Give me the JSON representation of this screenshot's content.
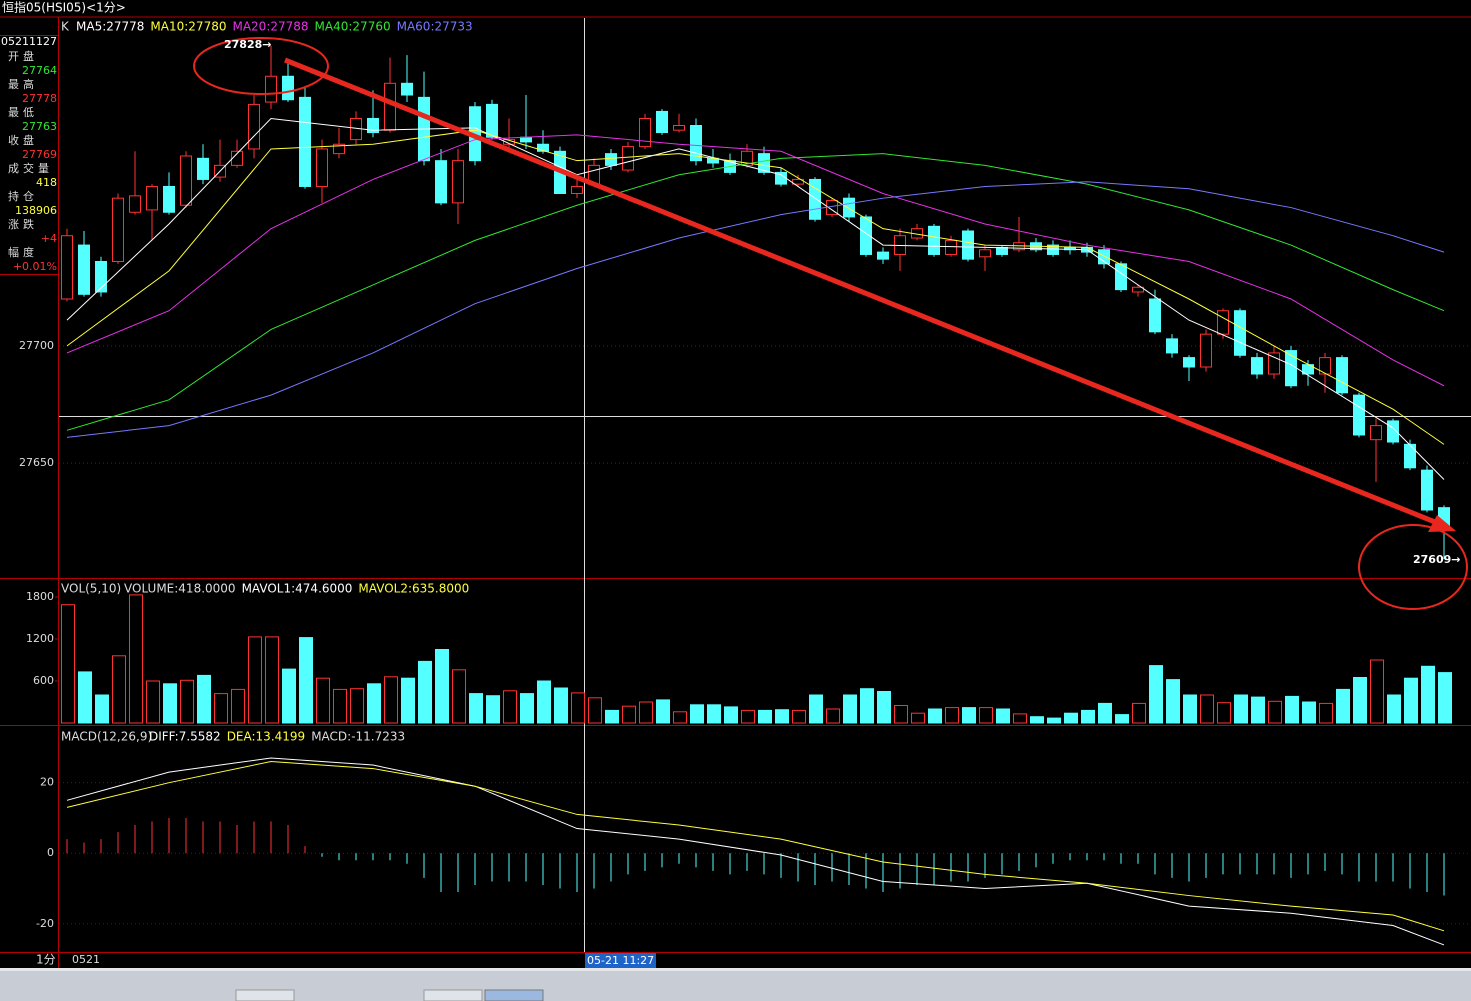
{
  "window_title": "恒指05(HSI05)<1分>",
  "info_panel": {
    "time": "05211127",
    "fields": [
      {
        "label": "开盘",
        "value": 27764,
        "color": "#32e632"
      },
      {
        "label": "最高",
        "value": 27778,
        "color": "#ff3232"
      },
      {
        "label": "最低",
        "value": 27763,
        "color": "#32e632"
      },
      {
        "label": "收盘",
        "value": 27769,
        "color": "#ff3232"
      },
      {
        "label": "成交量",
        "value": 418,
        "color": "#ffff3c"
      },
      {
        "label": "持仓",
        "value": 138906,
        "color": "#ffff3c"
      },
      {
        "label": "涨跌",
        "value": "+4",
        "color": "#ff3232"
      },
      {
        "label": "幅度",
        "value": "+0.01%",
        "color": "#ff3232"
      }
    ]
  },
  "chart_data": [
    {
      "type": "candlestick",
      "legend_label": "K",
      "up_color": "#ff3232",
      "down_color": "#54ffff",
      "ylim": [
        27601,
        27839
      ],
      "yticks": [
        27650,
        27700
      ],
      "grid": true,
      "open": [
        27720,
        27743,
        27736,
        27736,
        27757,
        27758,
        27768,
        27760,
        27780,
        27772,
        27777,
        27784,
        27804,
        27815,
        27806,
        27768,
        27782,
        27788,
        27797,
        27792,
        27812,
        27806,
        27779,
        27761,
        27802,
        27803,
        27786,
        27789,
        27786,
        27783,
        27765,
        27769,
        27782,
        27775,
        27785,
        27800,
        27792,
        27794,
        27780,
        27779,
        27777,
        27782,
        27774,
        27769,
        27771,
        27756,
        27763,
        27755,
        27740,
        27739,
        27746,
        27751,
        27739,
        27749,
        27738,
        27742,
        27741,
        27744,
        27743,
        27742,
        27742,
        27741,
        27735,
        27723,
        27720,
        27703,
        27695,
        27691,
        27705,
        27715,
        27695,
        27688,
        27698,
        27692,
        27688,
        27695,
        27679,
        27660,
        27668,
        27658,
        27647,
        27631
      ],
      "high": [
        27750,
        27749,
        27738,
        27765,
        27783,
        27769,
        27774,
        27783,
        27786,
        27788,
        27788,
        27807,
        27828,
        27822,
        27810,
        27788,
        27793,
        27800,
        27809,
        27823,
        27824,
        27817,
        27784,
        27784,
        27804,
        27805,
        27797,
        27807,
        27792,
        27785,
        27773,
        27780,
        27784,
        27787,
        27799,
        27801,
        27799,
        27797,
        27784,
        27782,
        27786,
        27785,
        27776,
        27773,
        27772,
        27763,
        27765,
        27756,
        27742,
        27750,
        27752,
        27752,
        27747,
        27750,
        27743,
        27743,
        27755,
        27746,
        27745,
        27745,
        27744,
        27743,
        27736,
        27726,
        27724,
        27705,
        27696,
        27707,
        27716,
        27716,
        27697,
        27700,
        27700,
        27694,
        27697,
        27696,
        27680,
        27669,
        27669,
        27660,
        27649,
        27632
      ],
      "low": [
        27719,
        27721,
        27721,
        27735,
        27756,
        27745,
        27756,
        27759,
        27769,
        27770,
        27776,
        27780,
        27801,
        27804,
        27767,
        27761,
        27780,
        27786,
        27789,
        27791,
        27804,
        27777,
        27760,
        27752,
        27777,
        27788,
        27784,
        27784,
        27782,
        27765,
        27763,
        27768,
        27775,
        27774,
        27784,
        27790,
        27791,
        27777,
        27776,
        27773,
        27776,
        27773,
        27768,
        27768,
        27753,
        27755,
        27753,
        27738,
        27735,
        27732,
        27745,
        27738,
        27738,
        27736,
        27732,
        27738,
        27740,
        27740,
        27738,
        27739,
        27738,
        27733,
        27723,
        27721,
        27705,
        27695,
        27685,
        27689,
        27703,
        27695,
        27686,
        27686,
        27682,
        27683,
        27680,
        27679,
        27661,
        27642,
        27658,
        27647,
        27629,
        27609
      ],
      "close": [
        27747,
        27722,
        27723,
        27763,
        27764,
        27768,
        27757,
        27781,
        27771,
        27777,
        27783,
        27803,
        27815,
        27805,
        27768,
        27784,
        27786,
        27797,
        27791,
        27812,
        27807,
        27779,
        27761,
        27779,
        27779,
        27789,
        27788,
        27787,
        27783,
        27765,
        27768,
        27777,
        27777,
        27785,
        27797,
        27791,
        27794,
        27779,
        27778,
        27774,
        27783,
        27774,
        27769,
        27771,
        27754,
        27762,
        27755,
        27739,
        27737,
        27747,
        27750,
        27739,
        27745,
        27737,
        27741,
        27739,
        27744,
        27741,
        27739,
        27741,
        27740,
        27735,
        27724,
        27725,
        27706,
        27697,
        27691,
        27705,
        27715,
        27696,
        27688,
        27697,
        27683,
        27688,
        27695,
        27680,
        27662,
        27666,
        27659,
        27648,
        27630,
        27623
      ],
      "lines": [
        {
          "name": "MA5:27778",
          "color": "#ffffff",
          "x": [
            0,
            6,
            12,
            18,
            24,
            30,
            36,
            42,
            48,
            54,
            60,
            66,
            72,
            78,
            81
          ],
          "values": [
            27711,
            27752,
            27797,
            27792,
            27793,
            27773,
            27784,
            27773,
            27743,
            27742,
            27741,
            27711,
            27692,
            27665,
            27643
          ]
        },
        {
          "name": "MA10:27780",
          "color": "#ffff3c",
          "x": [
            0,
            6,
            12,
            18,
            24,
            30,
            36,
            42,
            48,
            54,
            60,
            66,
            72,
            78,
            81
          ],
          "values": [
            27700,
            27732,
            27784,
            27786,
            27792,
            27779,
            27782,
            27776,
            27750,
            27743,
            27742,
            27720,
            27696,
            27673,
            27658
          ]
        },
        {
          "name": "MA20:27788",
          "color": "#e632e6",
          "x": [
            0,
            6,
            12,
            18,
            24,
            30,
            36,
            42,
            48,
            54,
            60,
            66,
            72,
            78,
            81
          ],
          "values": [
            27697,
            27715,
            27750,
            27771,
            27788,
            27790,
            27786,
            27783,
            27765,
            27752,
            27743,
            27736,
            27720,
            27694,
            27683
          ]
        },
        {
          "name": "MA40:27760",
          "color": "#32e632",
          "x": [
            0,
            6,
            12,
            18,
            24,
            30,
            36,
            42,
            48,
            54,
            60,
            66,
            72,
            78,
            81
          ],
          "values": [
            27664,
            27677,
            27707,
            27726,
            27745,
            27760,
            27773,
            27780,
            27782,
            27777,
            27769,
            27758,
            27743,
            27724,
            27715
          ]
        },
        {
          "name": "MA60:27733",
          "color": "#7878ff",
          "x": [
            0,
            6,
            12,
            18,
            24,
            30,
            36,
            42,
            48,
            54,
            60,
            66,
            72,
            78,
            81
          ],
          "values": [
            27661,
            27666,
            27679,
            27697,
            27718,
            27733,
            27746,
            27756,
            27763,
            27768,
            27770,
            27767,
            27759,
            27747,
            27740
          ]
        }
      ],
      "annotations": [
        "27828→",
        "27609→"
      ]
    },
    {
      "type": "bar",
      "legend_label": "VOL(5,10)",
      "ylim": [
        0,
        2000
      ],
      "yticks": [
        600,
        1200,
        1800
      ],
      "legend": [
        {
          "name": "VOLUME:418.0000",
          "color": "#dddddd"
        },
        {
          "name": "MAVOL1:474.6000",
          "color": "#ffffff"
        },
        {
          "name": "MAVOL2:635.8000",
          "color": "#ffff3c"
        }
      ],
      "values": [
        1690,
        730,
        400,
        960,
        1830,
        600,
        560,
        610,
        680,
        420,
        480,
        1230,
        1230,
        770,
        1220,
        640,
        480,
        490,
        560,
        660,
        640,
        880,
        1050,
        760,
        420,
        390,
        460,
        420,
        600,
        500,
        430,
        360,
        180,
        240,
        300,
        330,
        160,
        260,
        260,
        230,
        180,
        180,
        190,
        180,
        400,
        200,
        400,
        490,
        450,
        250,
        140,
        200,
        220,
        220,
        220,
        200,
        130,
        90,
        70,
        140,
        180,
        280,
        120,
        280,
        820,
        620,
        400,
        400,
        290,
        400,
        370,
        310,
        380,
        300,
        280,
        480,
        650,
        900,
        400,
        640,
        810,
        720
      ]
    },
    {
      "type": "macd",
      "legend_label": "MACD(12,26,9)",
      "ylim": [
        -28,
        35.5
      ],
      "yticks": [
        -20,
        0,
        20
      ],
      "legend": [
        {
          "name": "MACD:-11.7233",
          "color": "#dddddd"
        }
      ],
      "histogram": [
        4,
        3,
        4,
        6,
        8,
        9,
        10,
        10,
        9,
        9,
        8,
        9,
        9,
        8,
        2,
        -1,
        -2,
        -2,
        -2,
        -2,
        -3,
        -7,
        -11,
        -11,
        -9,
        -8,
        -8,
        -8,
        -9,
        -10,
        -11,
        -10,
        -8,
        -6,
        -5,
        -4,
        -3,
        -4,
        -5,
        -6,
        -5,
        -6,
        -7,
        -8,
        -9,
        -8,
        -9,
        -10,
        -11,
        -10,
        -9,
        -9,
        -8,
        -8,
        -7,
        -6,
        -5,
        -4,
        -3,
        -2,
        -2,
        -2,
        -3,
        -3,
        -6,
        -7,
        -8,
        -7,
        -6,
        -6,
        -6,
        -6,
        -7,
        -6,
        -5,
        -6,
        -8,
        -8,
        -8,
        -10,
        -11,
        -12
      ],
      "lines": [
        {
          "name": "DIFF:7.5582",
          "color": "#ffffff",
          "x": [
            0,
            6,
            12,
            18,
            24,
            30,
            36,
            42,
            48,
            54,
            60,
            66,
            72,
            78,
            81
          ],
          "values": [
            15,
            23,
            27,
            25,
            19,
            7,
            4,
            -0.5,
            -8,
            -10,
            -8.5,
            -15,
            -17,
            -20.5,
            -26
          ]
        },
        {
          "name": "DEA:13.4199",
          "color": "#ffff3c",
          "x": [
            0,
            6,
            12,
            18,
            24,
            30,
            36,
            42,
            48,
            54,
            60,
            66,
            72,
            78,
            81
          ],
          "values": [
            13,
            20,
            26,
            24,
            19,
            11,
            8,
            4,
            -2.5,
            -6,
            -8.5,
            -12,
            -15,
            -17.5,
            -22
          ]
        }
      ]
    }
  ],
  "time_axis": {
    "period": "1分",
    "date": "0521",
    "cursor": "05-21 11:27"
  }
}
